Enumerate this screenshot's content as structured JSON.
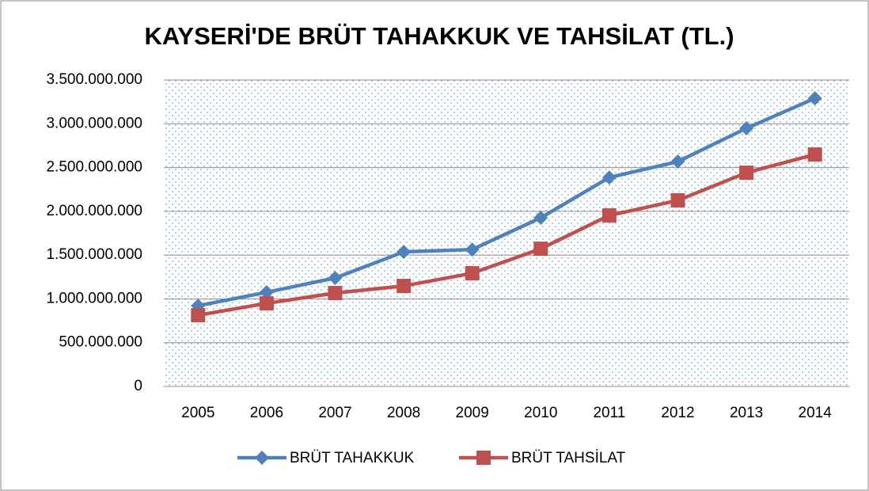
{
  "chart_data": {
    "type": "line",
    "title": "KAYSERİ'DE BRÜT TAHAKKUK VE TAHSİLAT (TL.)",
    "categories": [
      "2005",
      "2006",
      "2007",
      "2008",
      "2009",
      "2010",
      "2011",
      "2012",
      "2013",
      "2014"
    ],
    "series": [
      {
        "name": "BRÜT TAHAKKUK",
        "color": "#4f81bd",
        "marker": "diamond",
        "values": [
          922000000,
          1076000000,
          1239000000,
          1537000000,
          1564000000,
          1926000000,
          2387000000,
          2568000000,
          2948000000,
          3291000000
        ]
      },
      {
        "name": "BRÜT TAHSİLAT",
        "color": "#c0504d",
        "marker": "square",
        "values": [
          814000000,
          949000000,
          1067000000,
          1148000000,
          1293000000,
          1573000000,
          1953000000,
          2125000000,
          2441000000,
          2649000000
        ]
      }
    ],
    "ylim": [
      0,
      3500000000
    ],
    "yticks": [
      0,
      {
        "value": 500000000,
        "label": "500.000.000"
      },
      {
        "value": 1000000000,
        "label": "1.000.000.000"
      },
      {
        "value": 1500000000,
        "label": "1.500.000.000"
      },
      {
        "value": 2000000000,
        "label": "2.000.000.000"
      },
      {
        "value": 2500000000,
        "label": "2.500.000.000"
      },
      {
        "value": 3000000000,
        "label": "3.000.000.000"
      },
      {
        "value": 3500000000,
        "label": "3.500.000.000"
      }
    ],
    "grid": true,
    "legend": "bottom"
  }
}
